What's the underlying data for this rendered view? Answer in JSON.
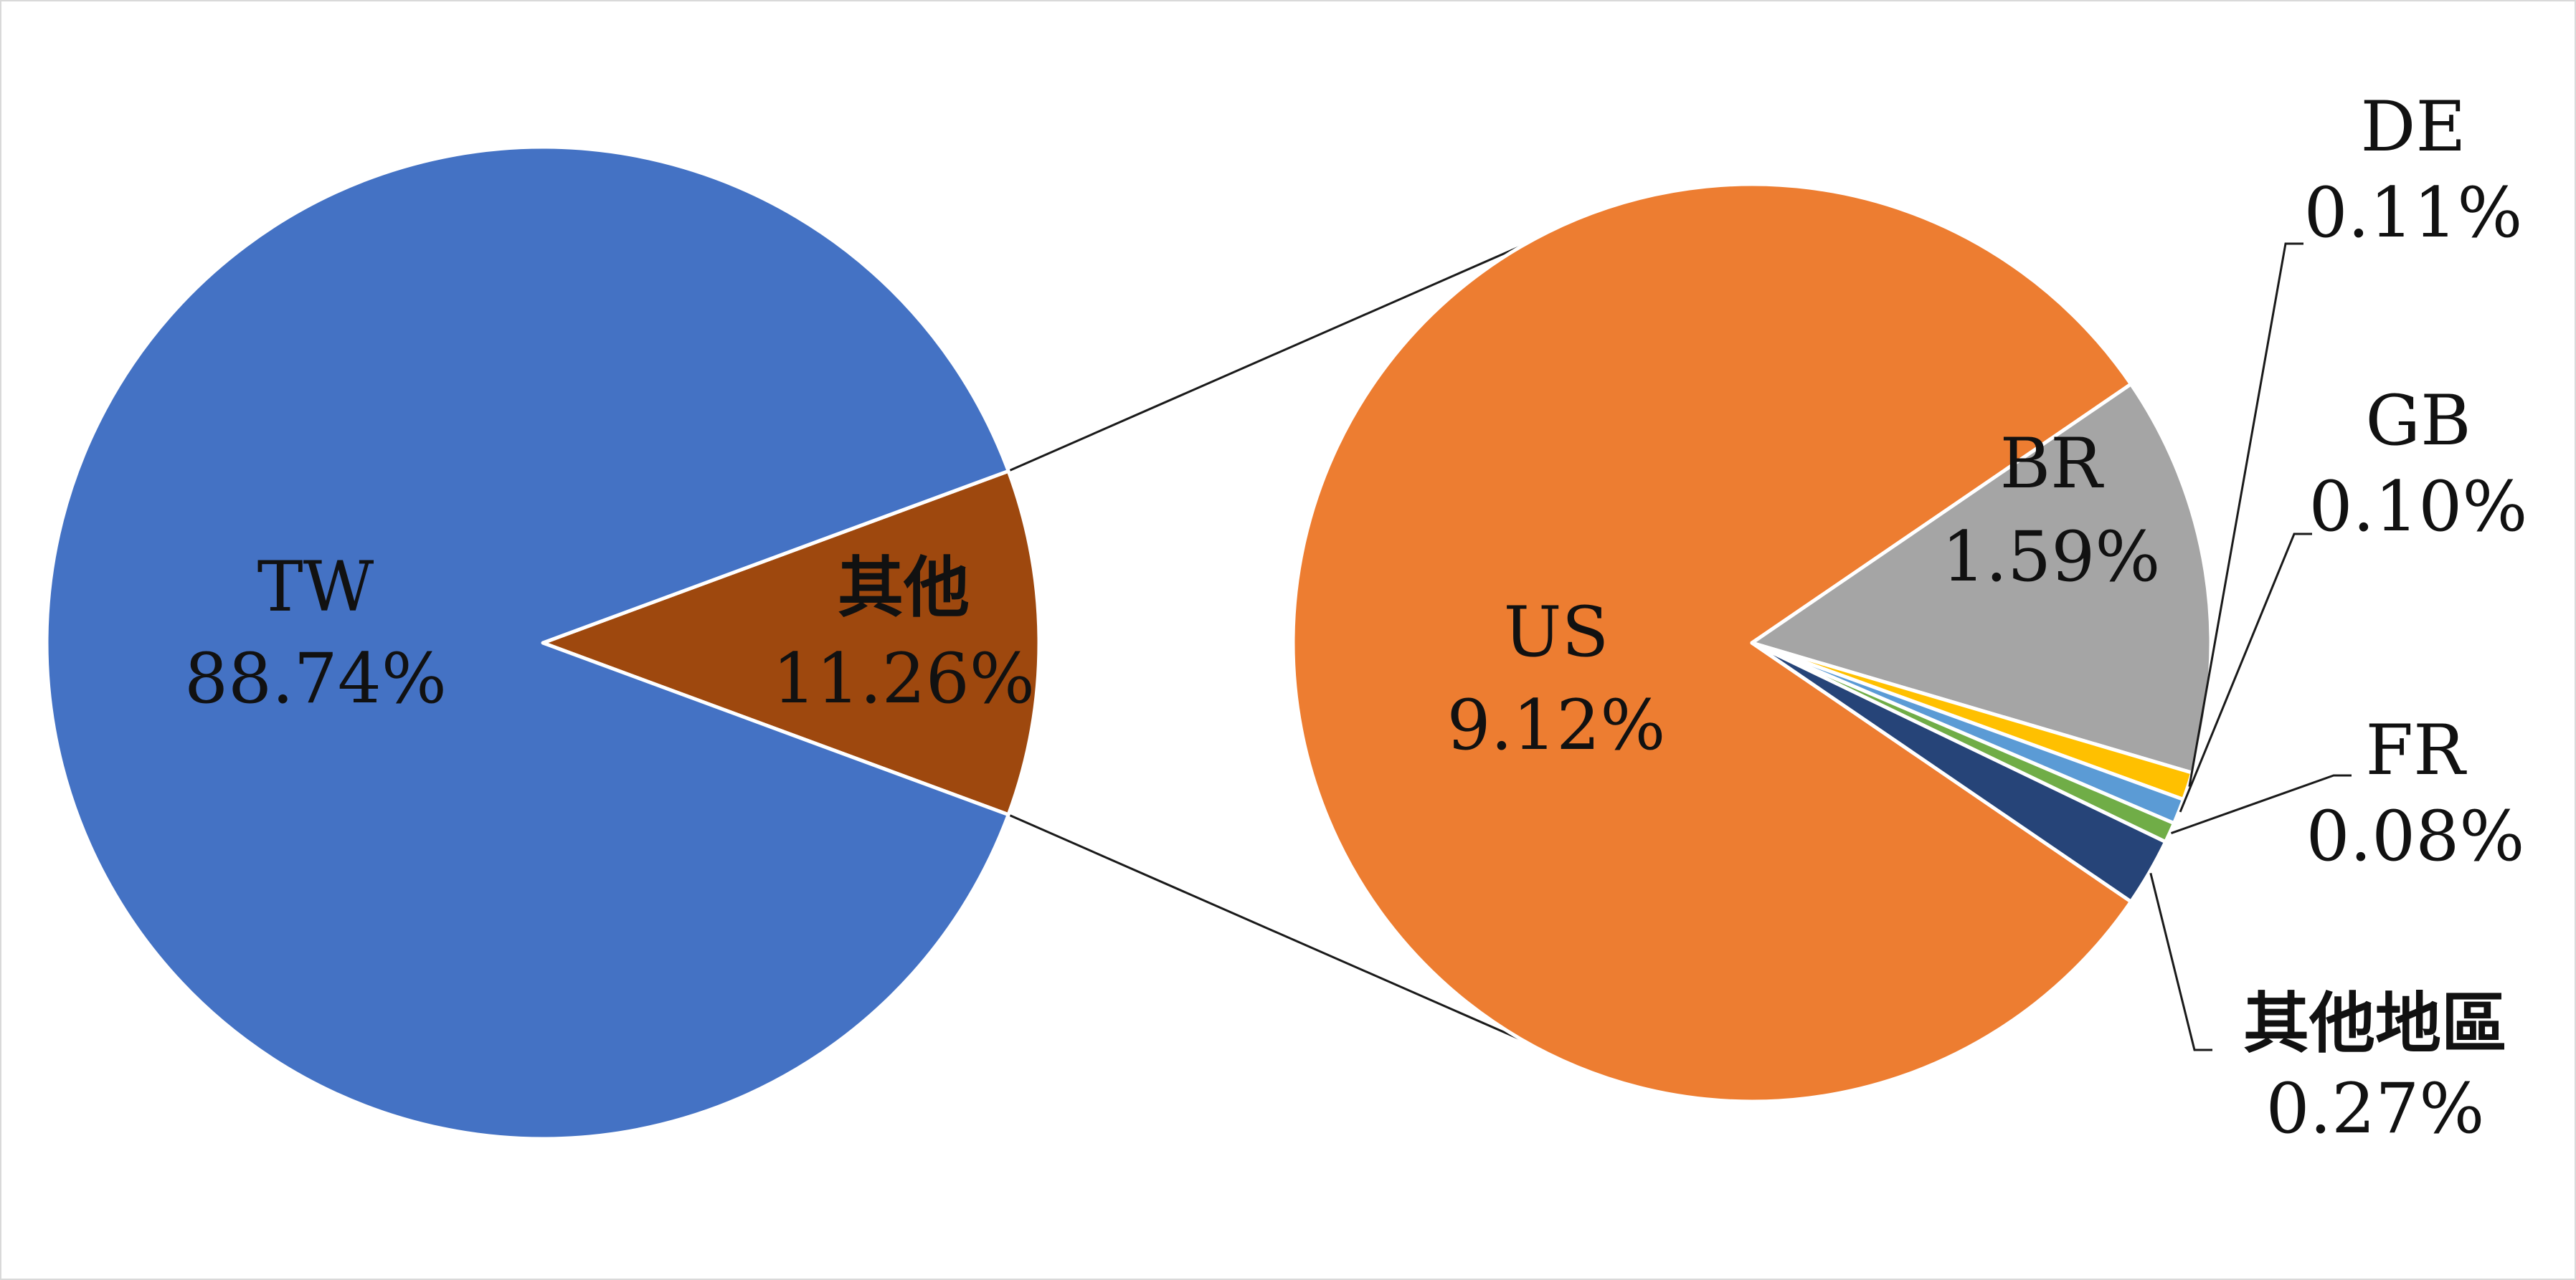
{
  "chart_data": {
    "type": "pie",
    "subtype": "pie-of-pie",
    "main_pie": {
      "slices": [
        {
          "name": "TW",
          "value": 88.74,
          "label": "88.74%",
          "color": "#4472C4"
        },
        {
          "name": "其他",
          "value": 11.26,
          "label": "11.26%",
          "color": "#9E480E"
        }
      ]
    },
    "secondary_pie": {
      "slices": [
        {
          "name": "US",
          "value": 9.12,
          "label": "9.12%",
          "color": "#ED7D31"
        },
        {
          "name": "BR",
          "value": 1.59,
          "label": "1.59%",
          "color": "#A5A5A5"
        },
        {
          "name": "DE",
          "value": 0.11,
          "label": "0.11%",
          "color": "#FFC000"
        },
        {
          "name": "GB",
          "value": 0.1,
          "label": "0.10%",
          "color": "#5B9BD5"
        },
        {
          "name": "FR",
          "value": 0.08,
          "label": "0.08%",
          "color": "#70AD47"
        },
        {
          "name": "其他地區",
          "value": 0.27,
          "label": "0.27%",
          "color": "#264478"
        }
      ]
    },
    "legend": "none"
  }
}
